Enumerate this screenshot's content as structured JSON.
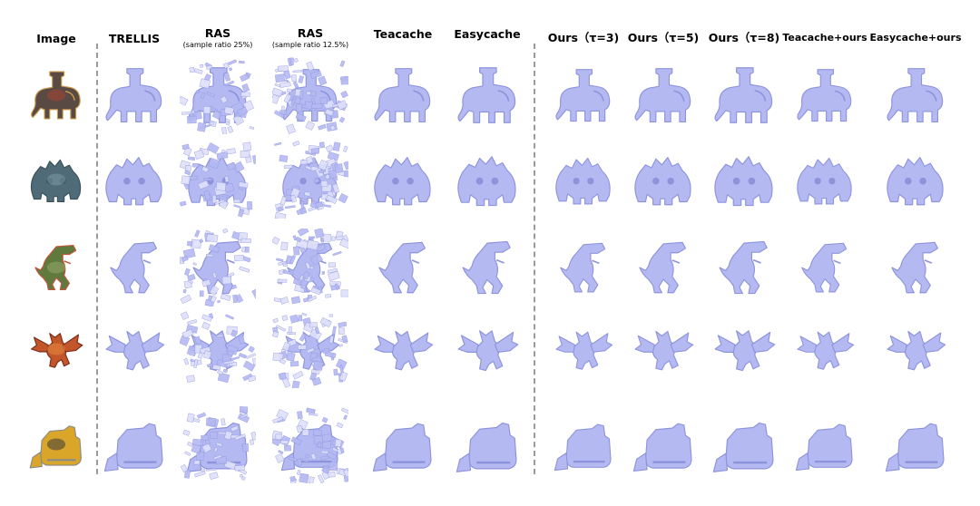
{
  "figure": {
    "columns": [
      {
        "id": "image",
        "title": "Image",
        "subtitle": ""
      },
      {
        "id": "trellis",
        "title": "TRELLIS",
        "subtitle": ""
      },
      {
        "id": "ras25",
        "title": "RAS",
        "subtitle": "(sample ratio 25%)"
      },
      {
        "id": "ras125",
        "title": "RAS",
        "subtitle": "(sample ratio 12.5%)"
      },
      {
        "id": "teacache",
        "title": "Teacache",
        "subtitle": ""
      },
      {
        "id": "easycache",
        "title": "Easycache",
        "subtitle": ""
      },
      {
        "id": "ours3",
        "title": "Ours（τ=3)",
        "subtitle": ""
      },
      {
        "id": "ours5",
        "title": "Ours（τ=5)",
        "subtitle": ""
      },
      {
        "id": "ours8",
        "title": "Ours（τ=8)",
        "subtitle": ""
      },
      {
        "id": "teacache_ours",
        "title": "Teacache+ours",
        "subtitle": ""
      },
      {
        "id": "easycache_ours",
        "title": "Easycache+ours",
        "subtitle": ""
      }
    ],
    "rows": [
      {
        "id": "elephant"
      },
      {
        "id": "golem"
      },
      {
        "id": "dinosaur"
      },
      {
        "id": "dragon"
      },
      {
        "id": "bulldozer"
      }
    ],
    "colors": {
      "mesh_fill": "#b4b9f2",
      "mesh_shade": "#8e94dc",
      "mesh_light": "#dfe1fb",
      "divider": "#9a9a9a"
    }
  }
}
